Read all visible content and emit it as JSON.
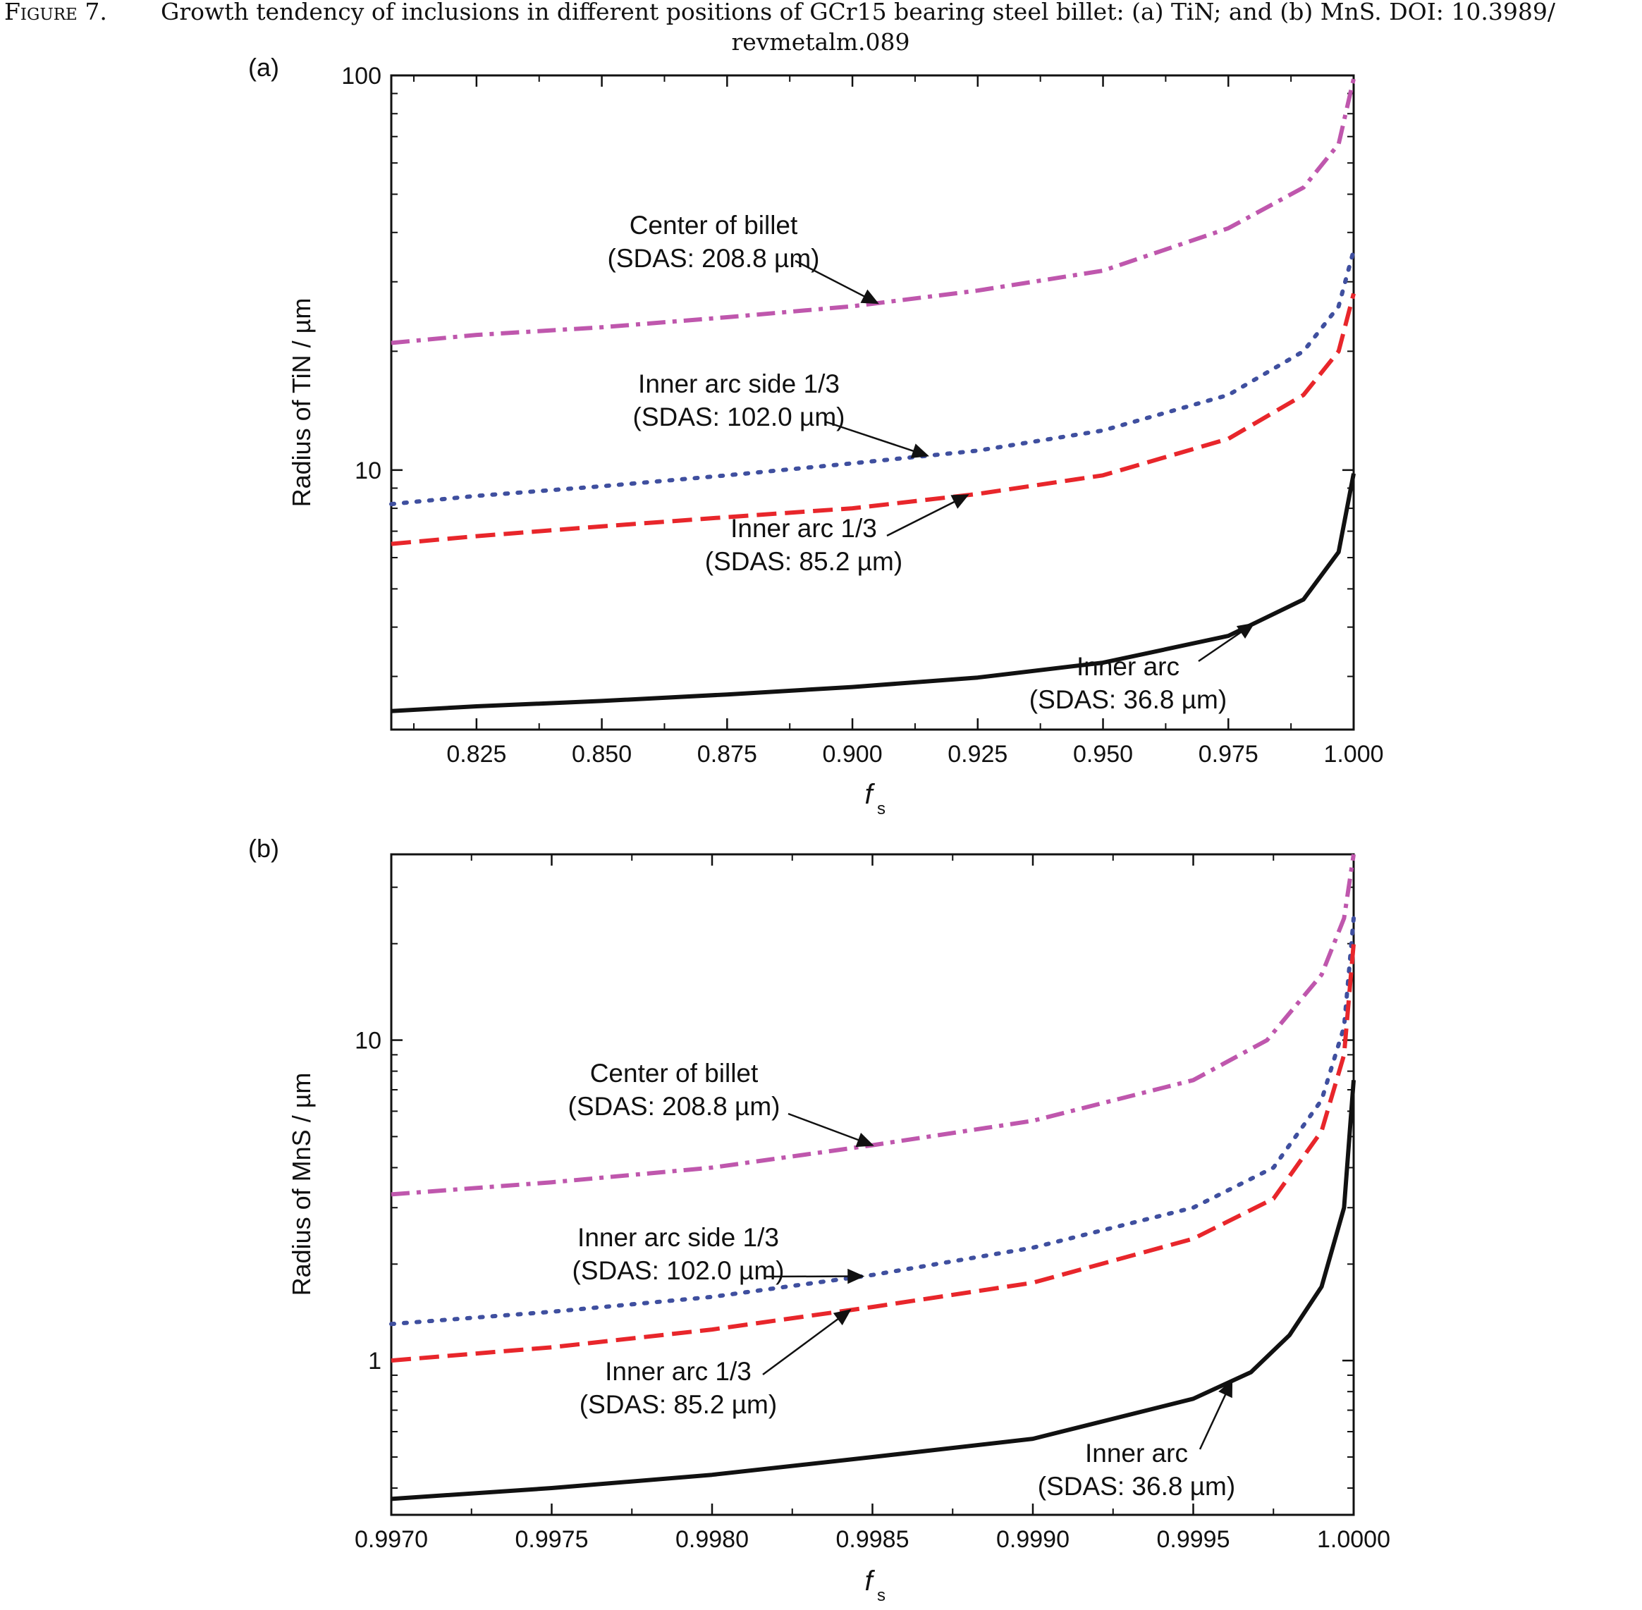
{
  "caption": {
    "label": "Figure 7.",
    "line1": "Growth tendency of inclusions in different positions of GCr15 bearing steel billet: (a) TiN; and (b) MnS. DOI: 10.3989/",
    "line2": "revmetalm.089"
  },
  "chart_data": [
    {
      "panel": "(a)",
      "type": "line",
      "xlabel": "f",
      "xlabel_sub": "s",
      "ylabel": "Radius of TiN / µm",
      "ylog": true,
      "xlim": [
        0.808,
        1.0
      ],
      "ylim": [
        2.2,
        100
      ],
      "xticks": [
        0.825,
        0.85,
        0.875,
        0.9,
        0.925,
        0.95,
        0.975,
        1.0
      ],
      "xtick_labels": [
        "0.825",
        "0.850",
        "0.875",
        "0.900",
        "0.925",
        "0.950",
        "0.975",
        "1.000"
      ],
      "ytick_labels": [
        {
          "value": 10,
          "label": "10"
        },
        {
          "value": 100,
          "label": "100"
        }
      ],
      "series": [
        {
          "key": "center",
          "color": "#bf57ad",
          "dash": "26 10 6 10",
          "x": [
            0.808,
            0.825,
            0.85,
            0.875,
            0.9,
            0.925,
            0.95,
            0.975,
            0.99,
            0.997,
            1.0
          ],
          "y": [
            21,
            22,
            23,
            24.4,
            26,
            28.5,
            32,
            41,
            52,
            67,
            98
          ]
        },
        {
          "key": "side",
          "color": "#3f4f9f",
          "dash": "4 14",
          "x": [
            0.808,
            0.825,
            0.85,
            0.875,
            0.9,
            0.925,
            0.95,
            0.975,
            0.99,
            0.997,
            1.0
          ],
          "y": [
            8.2,
            8.6,
            9.1,
            9.7,
            10.4,
            11.2,
            12.6,
            15.5,
            20,
            26,
            36
          ]
        },
        {
          "key": "inner13",
          "color": "#e8262b",
          "dash": "28 12",
          "x": [
            0.808,
            0.825,
            0.85,
            0.875,
            0.9,
            0.925,
            0.95,
            0.975,
            0.99,
            0.997,
            1.0
          ],
          "y": [
            6.5,
            6.8,
            7.2,
            7.6,
            8.0,
            8.7,
            9.7,
            12,
            15.5,
            20,
            28
          ]
        },
        {
          "key": "inner",
          "color": "#111111",
          "dash": "",
          "x": [
            0.808,
            0.825,
            0.85,
            0.875,
            0.9,
            0.925,
            0.95,
            0.975,
            0.99,
            0.997,
            1.0
          ],
          "y": [
            2.45,
            2.52,
            2.6,
            2.7,
            2.82,
            2.98,
            3.25,
            3.8,
            4.7,
            6.2,
            9.8
          ]
        }
      ],
      "annotations": [
        {
          "lines": [
            "Center of billet",
            "(SDAS: 208.8 µm)"
          ],
          "target_x": 0.905,
          "target_series": "center"
        },
        {
          "lines": [
            "Inner arc side 1/3",
            "(SDAS: 102.0 µm)"
          ],
          "target_x": 0.915,
          "target_series": "side"
        },
        {
          "lines": [
            "Inner arc 1/3",
            "(SDAS: 85.2 µm)"
          ],
          "target_x": 0.923,
          "target_series": "inner13"
        },
        {
          "lines": [
            "Inner arc",
            "(SDAS: 36.8 µm)"
          ],
          "target_x": 0.98,
          "target_series": "inner"
        }
      ]
    },
    {
      "panel": "(b)",
      "type": "line",
      "xlabel": "f",
      "xlabel_sub": "s",
      "ylabel": "Radius of MnS / µm",
      "ylog": true,
      "xlim": [
        0.997,
        1.0
      ],
      "ylim": [
        0.33,
        38
      ],
      "xticks": [
        0.997,
        0.9975,
        0.998,
        0.9985,
        0.999,
        0.9995,
        1.0
      ],
      "xtick_labels": [
        "0.9970",
        "0.9975",
        "0.9980",
        "0.9985",
        "0.9990",
        "0.9995",
        "1.0000"
      ],
      "ytick_labels": [
        {
          "value": 1,
          "label": "1"
        },
        {
          "value": 10,
          "label": "10"
        }
      ],
      "series": [
        {
          "key": "center",
          "color": "#bf57ad",
          "dash": "26 10 6 10",
          "x": [
            0.997,
            0.9975,
            0.998,
            0.9985,
            0.999,
            0.9995,
            0.99973,
            0.9999,
            0.99997,
            1.0
          ],
          "y": [
            3.3,
            3.6,
            4.0,
            4.7,
            5.6,
            7.5,
            10,
            16,
            24,
            38
          ]
        },
        {
          "key": "side",
          "color": "#3f4f9f",
          "dash": "4 14",
          "x": [
            0.997,
            0.9975,
            0.998,
            0.9985,
            0.999,
            0.9995,
            0.99975,
            0.9999,
            0.99997,
            1.0
          ],
          "y": [
            1.3,
            1.42,
            1.58,
            1.85,
            2.25,
            3.0,
            4.0,
            6.5,
            11,
            24
          ]
        },
        {
          "key": "inner13",
          "color": "#e8262b",
          "dash": "28 12",
          "x": [
            0.997,
            0.9975,
            0.998,
            0.9985,
            0.999,
            0.9995,
            0.99975,
            0.9999,
            0.99997,
            1.0
          ],
          "y": [
            1.0,
            1.1,
            1.25,
            1.47,
            1.75,
            2.4,
            3.2,
            5.2,
            9,
            20
          ]
        },
        {
          "key": "inner",
          "color": "#111111",
          "dash": "",
          "x": [
            0.997,
            0.9975,
            0.998,
            0.9985,
            0.999,
            0.9995,
            0.99968,
            0.9998,
            0.9999,
            0.99997,
            1.0
          ],
          "y": [
            0.37,
            0.4,
            0.44,
            0.5,
            0.57,
            0.76,
            0.92,
            1.2,
            1.7,
            3.0,
            7.5
          ]
        }
      ],
      "annotations": [
        {
          "lines": [
            "Center of billet",
            "(SDAS: 208.8 µm)"
          ],
          "target_x": 0.9985,
          "target_series": "center"
        },
        {
          "lines": [
            "Inner arc side 1/3",
            "(SDAS: 102.0 µm)"
          ],
          "target_x": 0.99847,
          "target_series": "side"
        },
        {
          "lines": [
            "Inner arc 1/3",
            "(SDAS: 85.2 µm)"
          ],
          "target_x": 0.99843,
          "target_series": "inner13"
        },
        {
          "lines": [
            "Inner arc",
            "(SDAS: 36.8 µm)"
          ],
          "target_x": 0.99962,
          "target_series": "inner"
        }
      ]
    }
  ]
}
